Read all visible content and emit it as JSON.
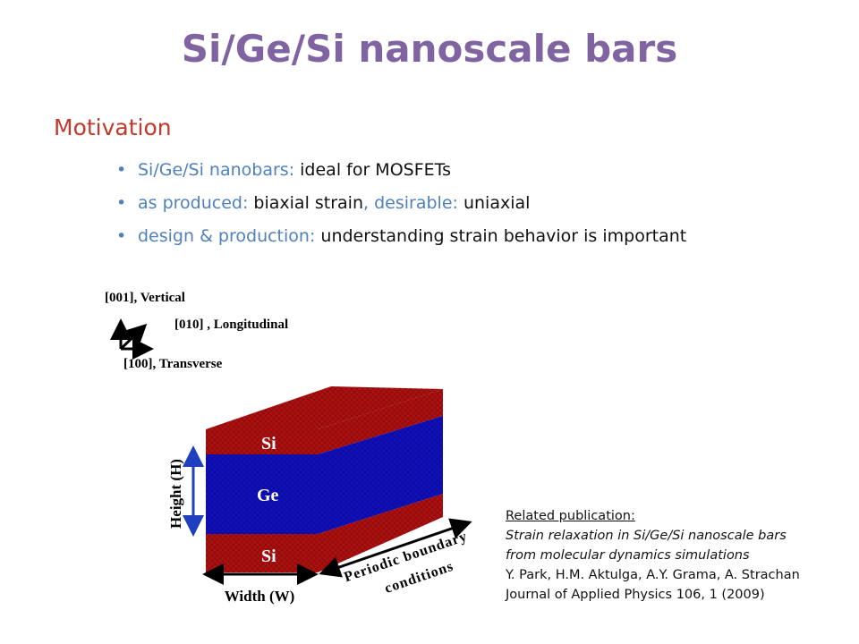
{
  "header": {
    "title": "Si/Ge/Si nanoscale bars"
  },
  "motivation": {
    "heading": "Motivation",
    "bullets": [
      [
        "Si/Ge/Si nanobars:",
        " ideal for MOSFETs"
      ],
      [
        "as produced:",
        " biaxial strain",
        ", desirable:",
        " uniaxial"
      ],
      [
        "design & production:",
        " understanding strain behavior is important"
      ]
    ]
  },
  "figure": {
    "axes": {
      "vertical": "[001], Vertical",
      "longitudinal": "[010] , Longitudinal",
      "transverse": "[100], Transverse"
    },
    "layers": {
      "top": "Si",
      "middle": "Ge",
      "bottom": "Si"
    },
    "height_label": "Height (H)",
    "width_label": "Width (W)",
    "periodic_label": [
      "Periodic boundary",
      "conditions"
    ]
  },
  "publication": {
    "heading": "Related publication:",
    "title_lines": [
      "Strain relaxation in Si/Ge/Si nanoscale bars",
      "from molecular dynamics simulations"
    ],
    "authors": "Y. Park, H.M. Aktulga, A.Y. Grama, A. Strachan",
    "journal": "Journal of Applied Physics 106, 1 (2009)"
  }
}
